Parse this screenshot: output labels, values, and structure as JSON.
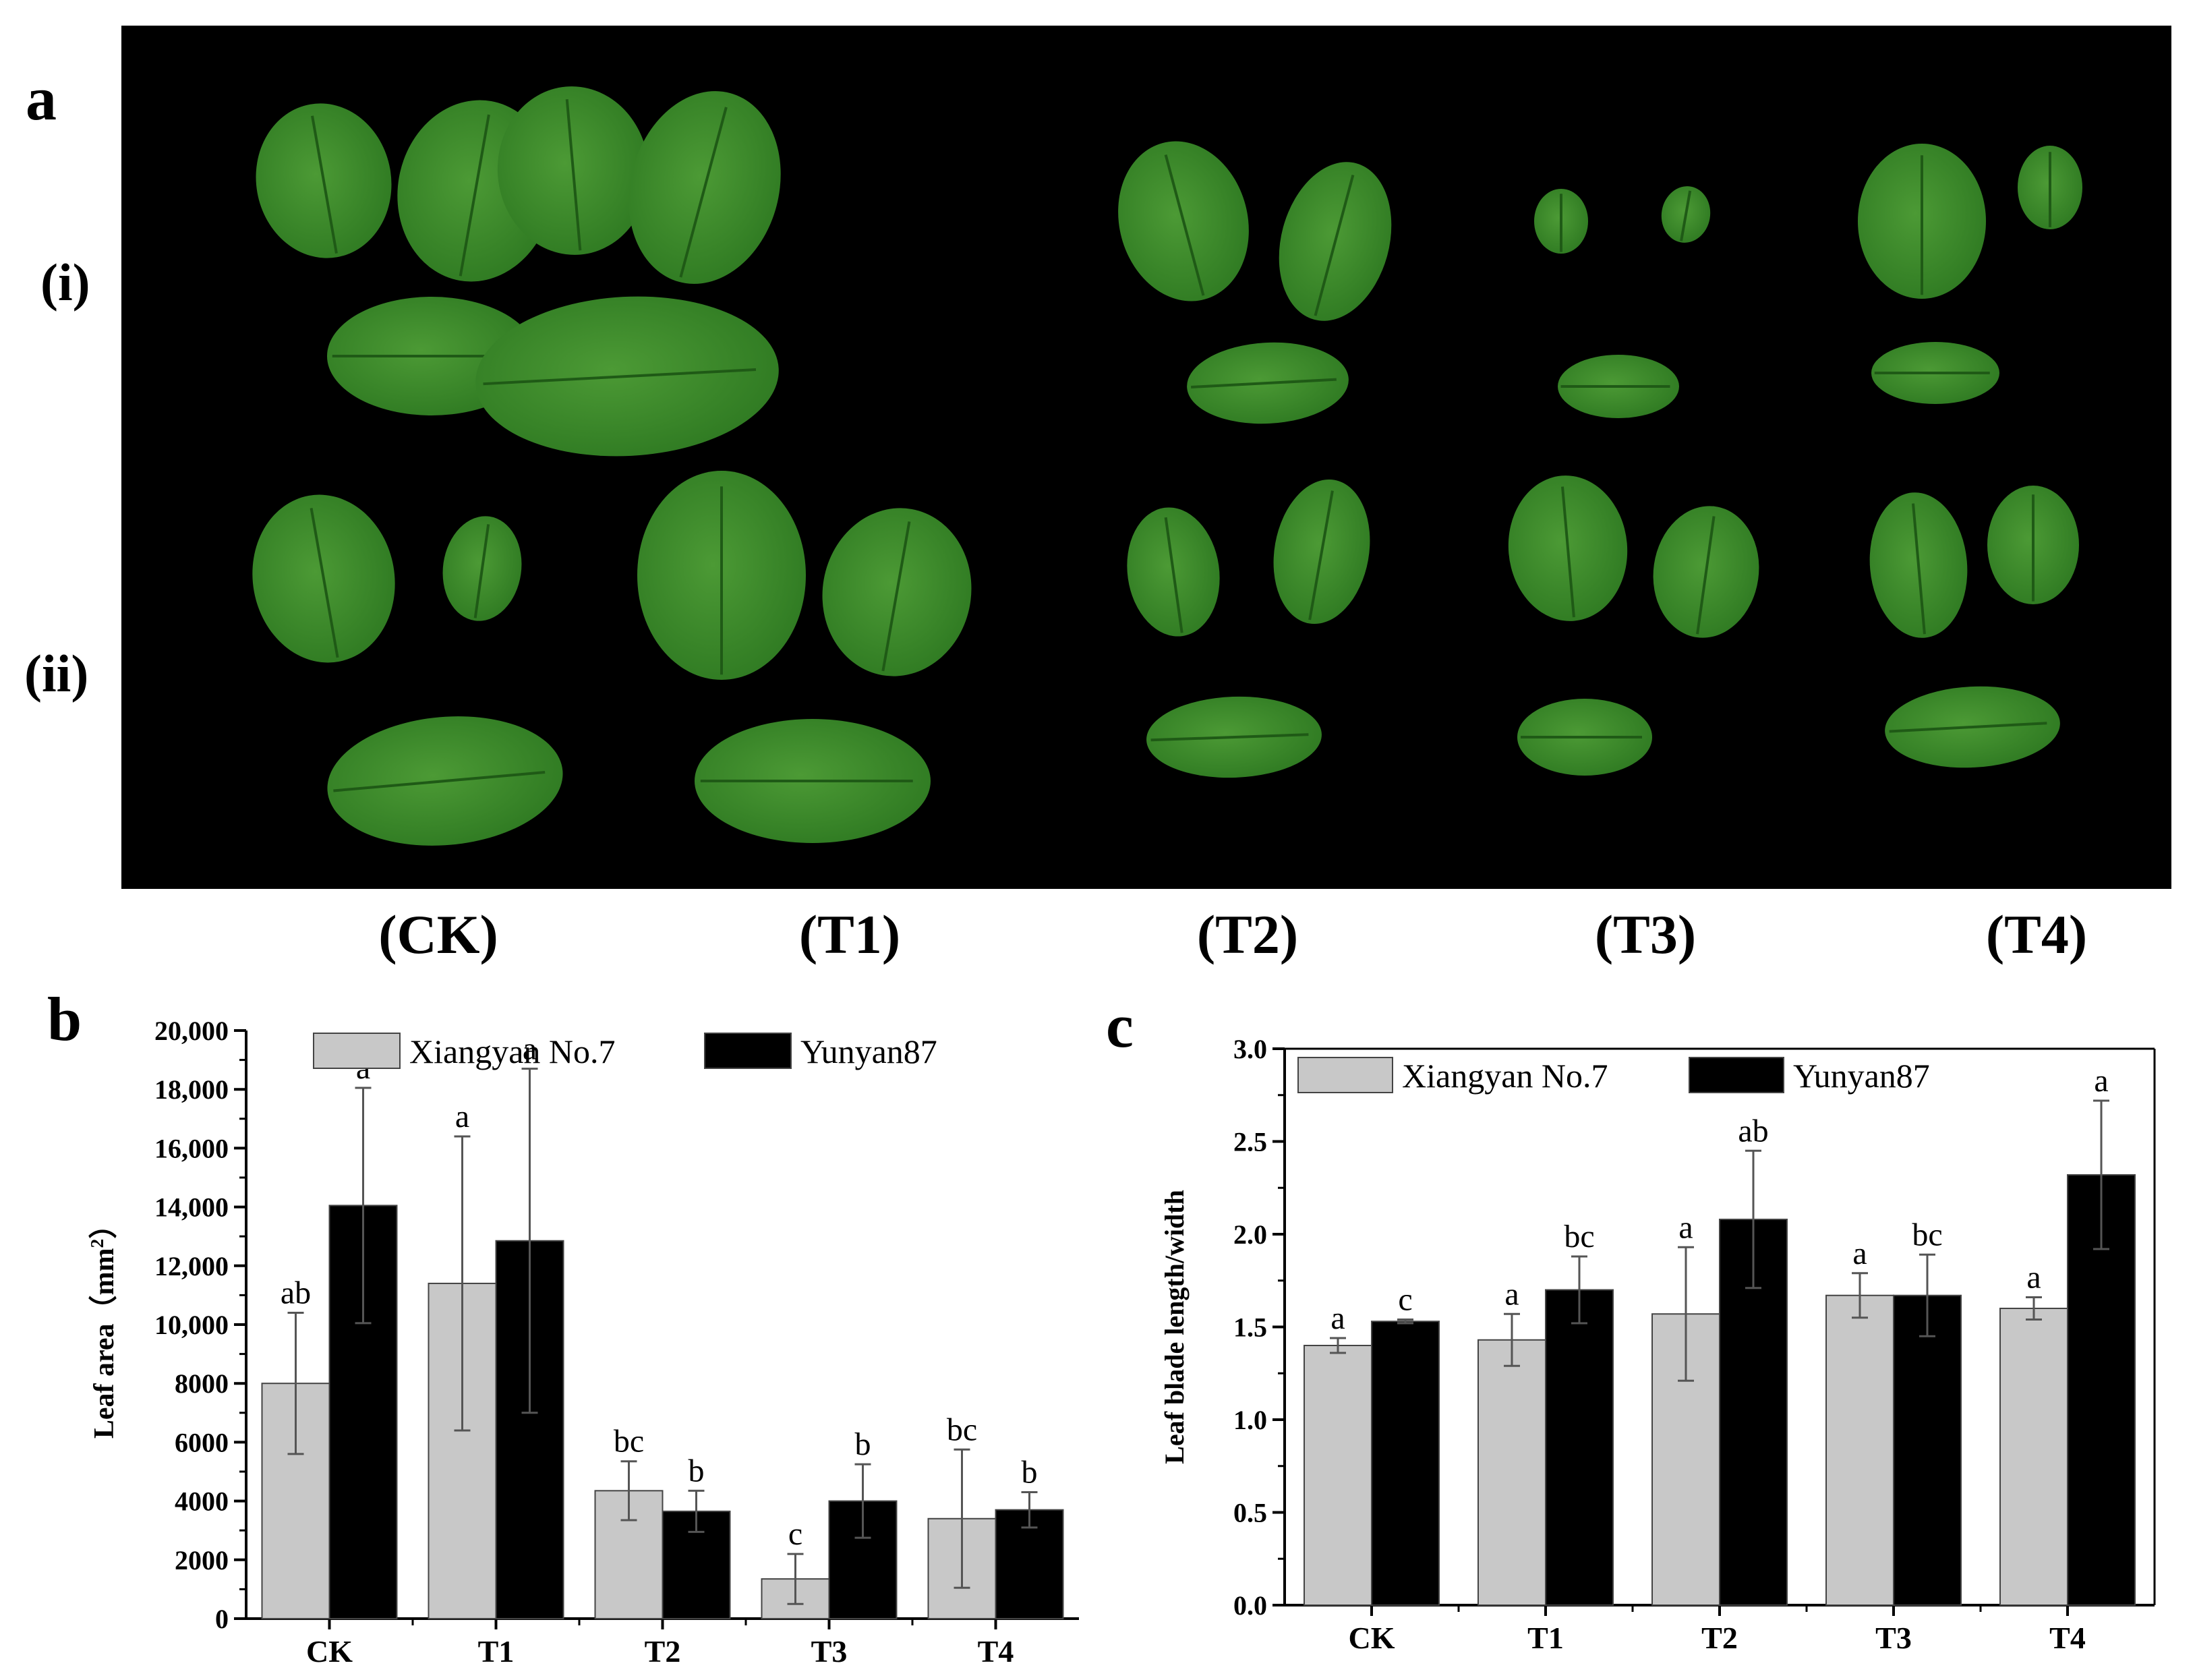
{
  "panels": {
    "a": {
      "letter": "a",
      "rows": [
        "(i)",
        "(ii)"
      ],
      "treatments": [
        "(CK)",
        "(T1)",
        "(T2)",
        "(T3)",
        "(T4)"
      ],
      "leaf_color": "#2f7a22"
    },
    "b": {
      "letter": "b"
    },
    "c": {
      "letter": "c"
    }
  },
  "chart_data": [
    {
      "type": "bar",
      "categories": [
        "CK",
        "T1",
        "T2",
        "T3",
        "T4"
      ],
      "ylabel": "Leaf area（mm²）",
      "ylabel_main": "Leaf area（mm",
      "ylabel_sup": "2",
      "ylabel_close": "）",
      "ylim": [
        0,
        20000
      ],
      "yticks": [
        0,
        2000,
        4000,
        6000,
        8000,
        "10,000",
        "12,000",
        "14,000",
        "16,000",
        "18,000",
        "20,000"
      ],
      "ytick_values": [
        0,
        2000,
        4000,
        6000,
        8000,
        10000,
        12000,
        14000,
        16000,
        18000,
        20000
      ],
      "legend_position": "top",
      "series": [
        {
          "name": "Xiangyan No.7",
          "color": "#c8c8c8",
          "values": [
            8000,
            11400,
            4350,
            1350,
            3400
          ],
          "errors": [
            2400,
            5000,
            1000,
            850,
            2350
          ],
          "letters": [
            "ab",
            "a",
            "bc",
            "c",
            "bc"
          ]
        },
        {
          "name": "Yunyan87",
          "color": "#000000",
          "values": [
            14050,
            12850,
            3650,
            4000,
            3700
          ],
          "errors": [
            4000,
            5850,
            700,
            1250,
            600
          ],
          "letters": [
            "a",
            "a",
            "b",
            "b",
            "b"
          ]
        }
      ]
    },
    {
      "type": "bar",
      "categories": [
        "CK",
        "T1",
        "T2",
        "T3",
        "T4"
      ],
      "ylabel": "Leaf blade length/width",
      "ylim": [
        0,
        3.0
      ],
      "yticks": [
        "0.0",
        "0.5",
        "1.0",
        "1.5",
        "2.0",
        "2.5",
        "3.0"
      ],
      "ytick_values": [
        0,
        0.5,
        1.0,
        1.5,
        2.0,
        2.5,
        3.0
      ],
      "legend_position": "top",
      "series": [
        {
          "name": "Xiangyan No.7",
          "color": "#c8c8c8",
          "values": [
            1.4,
            1.43,
            1.57,
            1.67,
            1.6
          ],
          "errors": [
            0.04,
            0.14,
            0.36,
            0.12,
            0.06
          ],
          "letters": [
            "a",
            "a",
            "a",
            "a",
            "a"
          ]
        },
        {
          "name": "Yunyan87",
          "color": "#000000",
          "values": [
            1.53,
            1.7,
            2.08,
            1.67,
            2.32
          ],
          "errors": [
            0.01,
            0.18,
            0.37,
            0.22,
            0.4
          ],
          "letters": [
            "c",
            "bc",
            "ab",
            "bc",
            "a"
          ]
        }
      ]
    }
  ]
}
